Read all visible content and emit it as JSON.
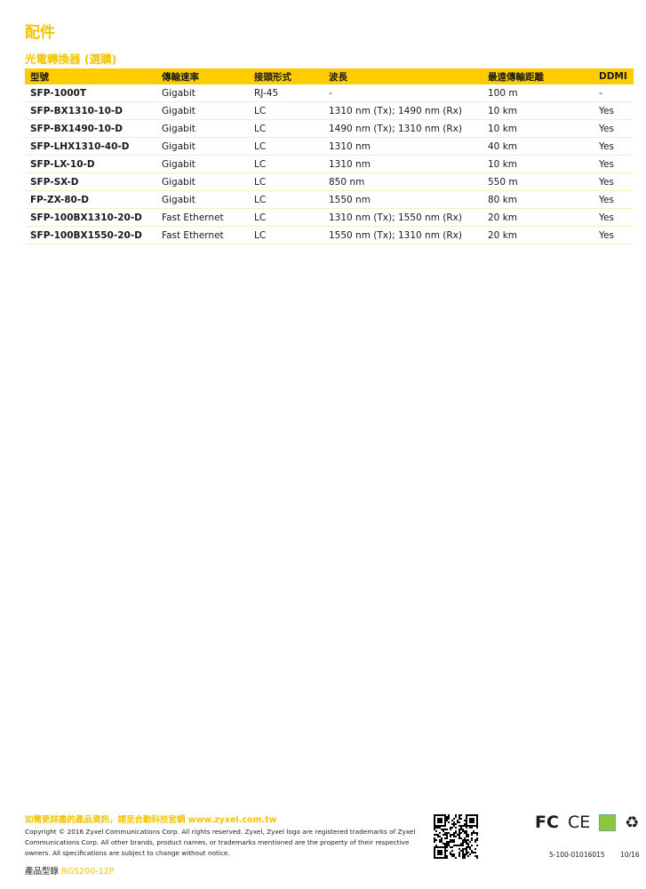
{
  "page_title": "配件",
  "section_title": "光電轉換器 (選購)",
  "table": {
    "headers": [
      "型號",
      "傳輸速率",
      "接頭形式",
      "波長",
      "最遠傳輸距離",
      "DDMI"
    ],
    "rows": [
      [
        "SFP-1000T",
        "Gigabit",
        "RJ-45",
        "-",
        "100 m",
        "-"
      ],
      [
        "SFP-BX1310-10-D",
        "Gigabit",
        "LC",
        "1310 nm (Tx); 1490 nm (Rx)",
        "10 km",
        "Yes"
      ],
      [
        "SFP-BX1490-10-D",
        "Gigabit",
        "LC",
        "1490 nm (Tx); 1310 nm (Rx)",
        "10 km",
        "Yes"
      ],
      [
        "SFP-LHX1310-40-D",
        "Gigabit",
        "LC",
        "1310 nm",
        "40 km",
        "Yes"
      ],
      [
        "SFP-LX-10-D",
        "Gigabit",
        "LC",
        "1310 nm",
        "10 km",
        "Yes"
      ],
      [
        "SFP-SX-D",
        "Gigabit",
        "LC",
        "850 nm",
        "550 m",
        "Yes"
      ],
      [
        "FP-ZX-80-D",
        "Gigabit",
        "LC",
        "1550 nm",
        "80 km",
        "Yes"
      ],
      [
        "SFP-100BX1310-20-D",
        "Fast Ethernet",
        "LC",
        "1310 nm (Tx); 1550 nm (Rx)",
        "20 km",
        "Yes"
      ],
      [
        "SFP-100BX1550-20-D",
        "Fast Ethernet",
        "LC",
        "1550 nm (Tx); 1310 nm (Rx)",
        "20 km",
        "Yes"
      ]
    ]
  },
  "footer": {
    "info_link": "如需更詳盡的產品資訊，請至合勤科技官網 www.zyxel.com.tw",
    "copyright": "Copyright © 2016 Zyxel Communications Corp. All rights reserved. Zyxel, Zyxel logo are registered trademarks of Zyxel Communications Corp. All other brands, product names, or trademarks mentioned are the property of their respective owners. All specifications are subject to change without notice.",
    "product_label": "產品型錄",
    "product_code": "RGS200-12P",
    "cert_fcc": "FC",
    "cert_ce": "CE",
    "doc_number": "5-100-01016015",
    "date": "10/16"
  },
  "colors": {
    "accent": "#ffcc00",
    "title": "#f5c400"
  }
}
